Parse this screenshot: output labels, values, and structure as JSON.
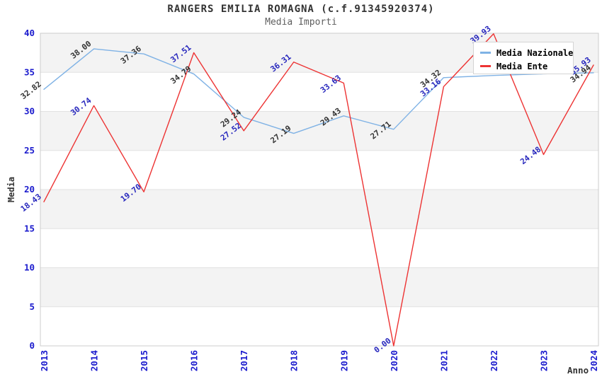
{
  "header": {
    "title": "RANGERS EMILIA ROMAGNA (c.f.91345920374)",
    "subtitle": "Media Importi"
  },
  "chart_data": {
    "type": "line",
    "title": "RANGERS EMILIA ROMAGNA (c.f.91345920374)",
    "subtitle": "Media Importi",
    "xlabel": "Anno",
    "ylabel": "Media",
    "x": [
      "2013",
      "2014",
      "2015",
      "2016",
      "2017",
      "2018",
      "2019",
      "2020",
      "2021",
      "2022",
      "2023",
      "2024"
    ],
    "ylim": [
      0,
      40
    ],
    "y_ticks": [
      0,
      5,
      10,
      15,
      20,
      25,
      30,
      35,
      40
    ],
    "grid": true,
    "legend_position": "top-right",
    "series": [
      {
        "name": "Media Nazionale",
        "color": "#7fb2e5",
        "label_color": "#333333",
        "values": [
          32.82,
          38.0,
          37.36,
          34.79,
          29.24,
          27.19,
          29.43,
          27.71,
          34.32,
          34.6,
          34.8,
          34.94
        ],
        "labels": [
          "32.82",
          "38.00",
          "37.36",
          "34.79",
          "29.24",
          "27.19",
          "29.43",
          "27.71",
          "34.32",
          null,
          null,
          "34.94"
        ]
      },
      {
        "name": "Media Ente",
        "color": "#ed3333",
        "label_color": "#2727bd",
        "values": [
          18.43,
          30.74,
          19.7,
          37.51,
          27.52,
          36.31,
          33.63,
          0.0,
          33.16,
          39.93,
          24.48,
          35.93
        ],
        "labels": [
          "18.43",
          "30.74",
          "19.70",
          "37.51",
          "27.52",
          "36.31",
          "33.63",
          "0.00",
          "33.16",
          "39.93",
          "24.48",
          "35.93"
        ]
      }
    ],
    "style": {
      "band_gray": "#f3f3f3",
      "band_white": "#ffffff",
      "grid_color": "#e2e2e2",
      "border_color": "#cccccc",
      "tick_color": "#1a1acd"
    }
  }
}
